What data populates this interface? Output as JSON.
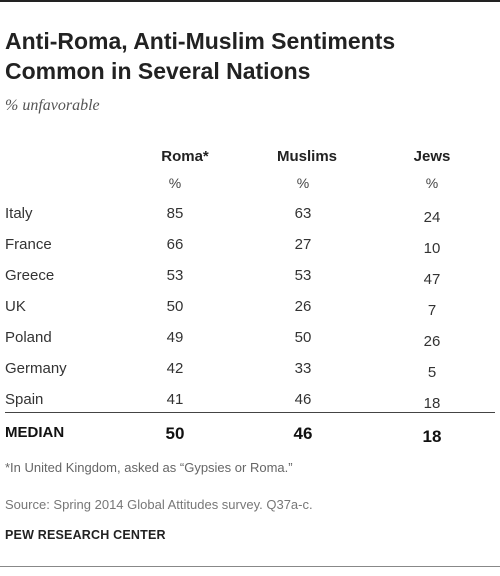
{
  "title": "Anti-Roma, Anti-Muslim Sentiments Common in Several Nations",
  "subtitle": "% unfavorable",
  "chart_data": {
    "type": "table",
    "columns": [
      {
        "label": "Roma*",
        "unit": "%"
      },
      {
        "label": "Muslims",
        "unit": "%"
      },
      {
        "label": "Jews",
        "unit": "%"
      }
    ],
    "rows": [
      {
        "label": "Italy",
        "values": [
          85,
          63,
          24
        ]
      },
      {
        "label": "France",
        "values": [
          66,
          27,
          10
        ]
      },
      {
        "label": "Greece",
        "values": [
          53,
          53,
          47
        ]
      },
      {
        "label": "UK",
        "values": [
          50,
          26,
          7
        ]
      },
      {
        "label": "Poland",
        "values": [
          49,
          50,
          26
        ]
      },
      {
        "label": "Germany",
        "values": [
          42,
          33,
          5
        ]
      },
      {
        "label": "Spain",
        "values": [
          41,
          46,
          18
        ]
      }
    ],
    "median": {
      "label": "MEDIAN",
      "values": [
        50,
        46,
        18
      ]
    }
  },
  "footnote": "*In United Kingdom, asked as “Gypsies or Roma.”",
  "source": "Source: Spring 2014 Global Attitudes survey. Q37a-c.",
  "credit": "PEW RESEARCH CENTER"
}
